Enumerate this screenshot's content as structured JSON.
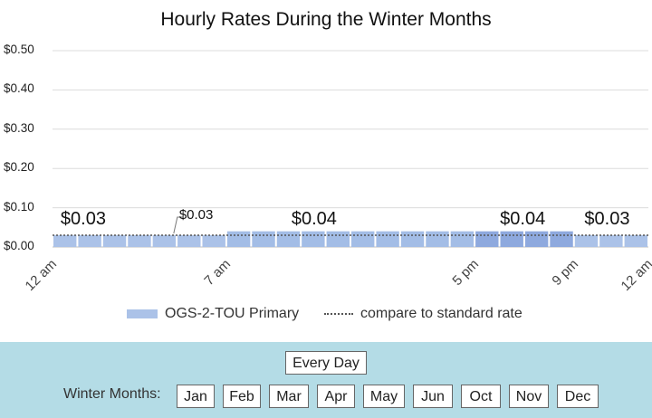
{
  "chart_data": {
    "type": "bar",
    "title": "Hourly Rates During the Winter Months",
    "xlabel": "",
    "ylabel": "",
    "ylim": [
      0,
      0.5
    ],
    "y_ticks": [
      "$0.00",
      "$0.10",
      "$0.20",
      "$0.30",
      "$0.40",
      "$0.50"
    ],
    "x_tick_labels": [
      {
        "label": "12 am",
        "hour": 0
      },
      {
        "label": "7 am",
        "hour": 7
      },
      {
        "label": "5 pm",
        "hour": 17
      },
      {
        "label": "9 pm",
        "hour": 21
      },
      {
        "label": "12 am",
        "hour": 24
      }
    ],
    "series": [
      {
        "name": "OGS-2-TOU Primary",
        "values": [
          0.03,
          0.03,
          0.03,
          0.03,
          0.03,
          0.03,
          0.03,
          0.04,
          0.04,
          0.04,
          0.04,
          0.04,
          0.04,
          0.04,
          0.04,
          0.04,
          0.04,
          0.04,
          0.04,
          0.04,
          0.04,
          0.03,
          0.03,
          0.03
        ],
        "colors": [
          "#abc2e8",
          "#abc2e8",
          "#abc2e8",
          "#abc2e8",
          "#abc2e8",
          "#abc2e8",
          "#abc2e8",
          "#a3bde6",
          "#a3bde6",
          "#a3bde6",
          "#a3bde6",
          "#a3bde6",
          "#a3bde6",
          "#a3bde6",
          "#a3bde6",
          "#a3bde6",
          "#a3bde6",
          "#8ea9de",
          "#8ea9de",
          "#8ea9de",
          "#8ea9de",
          "#abc2e8",
          "#abc2e8",
          "#abc2e8"
        ]
      },
      {
        "name": "compare to standard rate",
        "line_value": 0.03,
        "style": "dotted"
      }
    ],
    "data_labels": [
      {
        "text": "$0.03",
        "hour": 1.2,
        "size": "large"
      },
      {
        "text": "$0.03",
        "hour": 5.1,
        "size": "small"
      },
      {
        "text": "$0.04",
        "hour": 10.5,
        "size": "large"
      },
      {
        "text": "$0.04",
        "hour": 18.9,
        "size": "large"
      },
      {
        "text": "$0.03",
        "hour": 22.3,
        "size": "large"
      }
    ],
    "grid": true,
    "legend": "bottom"
  },
  "controls": {
    "every_day_label": "Every Day",
    "months_label": "Winter Months:",
    "months": [
      "Jan",
      "Feb",
      "Mar",
      "Apr",
      "May",
      "Jun",
      "Oct",
      "Nov",
      "Dec"
    ]
  }
}
